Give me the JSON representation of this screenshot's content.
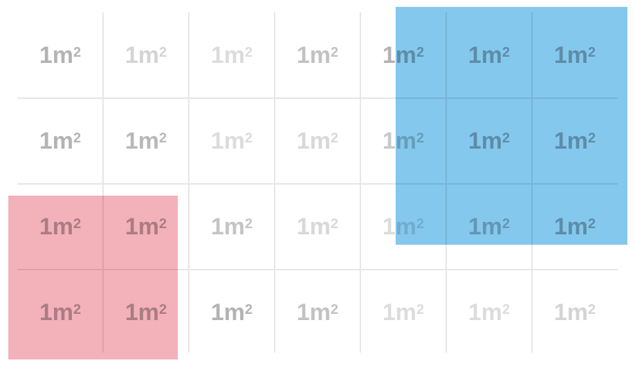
{
  "unit_label": "1m",
  "unit_exponent": "2",
  "grid": {
    "rows": 4,
    "cols": 7
  },
  "tones": [
    [
      "#b3b3b3",
      "#d4d4d4",
      "#dcdcdc",
      "#c2c2c2",
      "#b3b3b3",
      "#b3b3b3",
      "#b3b3b3"
    ],
    [
      "#b3b3b3",
      "#b8b8b8",
      "#dcdcdc",
      "#d8d8d8",
      "#c8c8c8",
      "#b3b3b3",
      "#b3b3b3"
    ],
    [
      "#b3b3b3",
      "#b3b3b3",
      "#c4c4c4",
      "#d8d8d8",
      "#dcdcdc",
      "#c0c0c0",
      "#b3b3b3"
    ],
    [
      "#b3b3b3",
      "#b3b3b3",
      "#b3b3b3",
      "#c2c2c2",
      "#dcdcdc",
      "#dcdcdc",
      "#d4d4d4"
    ]
  ],
  "regions": [
    {
      "name": "pink-region",
      "color": "#f2a9b3",
      "rows": [
        2,
        3
      ],
      "cols": [
        0,
        1
      ]
    },
    {
      "name": "blue-region",
      "color": "#76c2ec",
      "rows": [
        0,
        2
      ],
      "cols": [
        4,
        6
      ]
    }
  ]
}
